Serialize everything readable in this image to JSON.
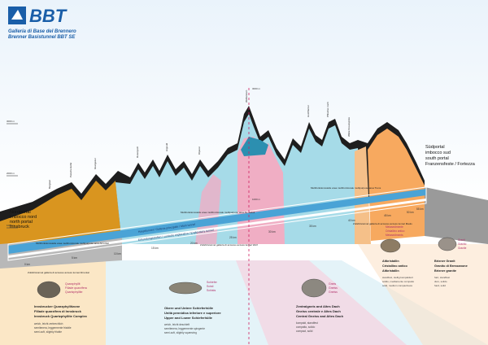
{
  "header": {
    "logo_text": "BBT",
    "line1": "Galleria di Base del Brennero",
    "line2": "Brenner Basistunnel BBT SE"
  },
  "portals": {
    "north": [
      "Nordportal",
      "imbocco nord",
      "north portal",
      "Innsbruck"
    ],
    "south": [
      "Südportal",
      "imbocco sud",
      "south portal",
      "Franzensfeste / Fortezza"
    ]
  },
  "altitudes": {
    "a3000": "3000 m",
    "a2000": "2000 m",
    "a1000": "1000 m",
    "peak": "3000 m",
    "mid": "1000 m"
  },
  "peaks": [
    "Bergisel",
    "Patscherkofel",
    "Glungezer",
    "Rosenjoch",
    "Hippold",
    "Olperer",
    "Wolfendorn",
    "Hochferner",
    "Pfitscher Joch",
    "Wilde Kreuzspitze"
  ],
  "tunnel": {
    "label_main": "Haupttunnel / Galleria principale / Main tunnel",
    "label_explor": "Erkundungsstollen / cunicolo esplorativo / Exploratory tunnel",
    "km": [
      "0 km",
      "5 km",
      "10 km",
      "15 km",
      "20 km",
      "25 km",
      "30 km",
      "35 km",
      "40 km",
      "45 km",
      "50 km",
      "55 km"
    ],
    "labels": [
      "Multifunktionsstelle area multifunzionale multipurpose area Ahrental",
      "Multifunktionsstelle area multifunzionale multipurpose area St. Jodok",
      "Multifunktionsstelle area multifunzionale multipurpose area Trens",
      "Zufahrtstunnel galleria di accesso access tunnel Wolf",
      "Zufahrtstunnel galleria di accesso access tunnel Ahrental",
      "Zufahrtstunnel galleria di accesso access tunnel Mauls"
    ]
  },
  "rocks": [
    {
      "tags": [
        "Quarzphyllit",
        "Fillade quarzifera",
        "Quartzphyllite"
      ],
      "title": [
        "Innsbrucker Quarzphyllitzone",
        "Fillade quarzifera di Innsbruck",
        "Innsbruck Quartzphyllite Complex"
      ],
      "props": [
        "weich, leicht zerbrechlich",
        "semitenera, leggermente friabile",
        "semi-soft, slightly friable"
      ],
      "color": "#e8a33c"
    },
    {
      "tags": [
        "Schiefer",
        "Scisti",
        "Schists"
      ],
      "title": [
        "Obere und Untere Schieferhülle",
        "Unità pennidica inferiore e superiore",
        "Upper and Lower Schieferhülle"
      ],
      "props": [
        "weich, leicht deschieft",
        "semitenera, leggermente spingente",
        "semi-soft, slightly squeezing"
      ],
      "color": "#9fd3e2"
    },
    {
      "tags": [
        "Gneis",
        "Gneiss",
        "Gneiss"
      ],
      "title": [
        "Zentralgneis and Altes Dach",
        "Gneiss centrale e Altes Dach",
        "Central Gneiss and Altes Dach"
      ],
      "props": [
        "kompakt, standfest",
        "compatto, solido",
        "compact, solid"
      ],
      "color": "#f0b8c8"
    },
    {
      "tags": [
        "Metasedimente",
        "Cristallino antico",
        "Metasediments"
      ],
      "title": [
        "Altkristallin",
        "Cristallino antico",
        "Altkristallin"
      ],
      "props": [
        "standfest, stellig kompaktiert",
        "solido, mediamente compatto",
        "solid, medium compactness"
      ],
      "color": "#f3c69b"
    },
    {
      "tags": [
        "Granit",
        "Granito",
        "Granite"
      ],
      "title": [
        "Brixner Granit",
        "Granito di Bressanone",
        "Brixner granite"
      ],
      "props": [
        "hart, standfest",
        "duro, solido",
        "hard, solid"
      ],
      "color": "#f3c69b"
    }
  ],
  "colors": {
    "phyllite": "#d9951f",
    "schist": "#a6dbe8",
    "gneiss": "#f0aec4",
    "crystalline": "#f5c089",
    "granite": "#f7a95f",
    "dark": "#222222",
    "tunnel": "#4aa3d6",
    "logo": "#1a5ea8"
  }
}
